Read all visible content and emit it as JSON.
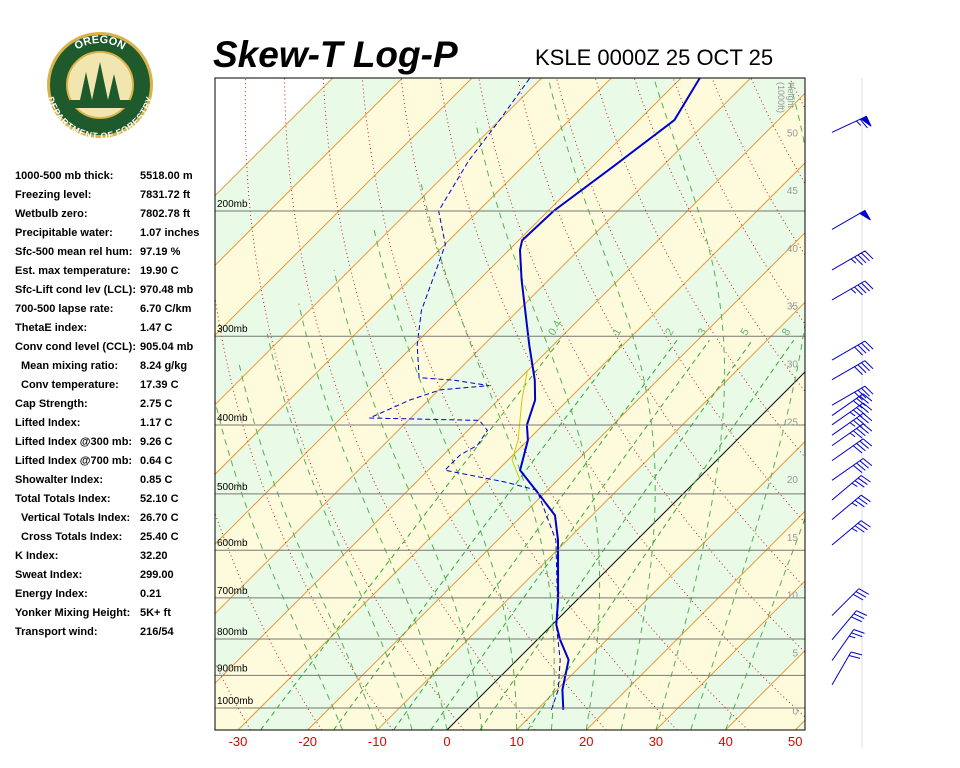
{
  "logo": {
    "top": "OREGON",
    "bottom": "DEPARTMENT OF FORESTRY"
  },
  "indices": [
    {
      "label": "1000-500 mb thick:",
      "value": "5518.00 m"
    },
    {
      "label": "Freezing level:",
      "value": "7831.72 ft"
    },
    {
      "label": "Wetbulb zero:",
      "value": "7802.78 ft"
    },
    {
      "label": "Precipitable water:",
      "value": "1.07 inches"
    },
    {
      "label": "Sfc-500 mean rel hum:",
      "value": "97.19 %"
    },
    {
      "label": "Est. max temperature:",
      "value": "19.90 C"
    },
    {
      "label": "Sfc-Lift cond lev (LCL):",
      "value": "970.48 mb"
    },
    {
      "label": "700-500 lapse rate:",
      "value": "6.70 C/km"
    },
    {
      "label": "ThetaE index:",
      "value": "1.47 C"
    },
    {
      "label": "Conv cond level (CCL):",
      "value": "905.04 mb"
    },
    {
      "label": "Mean mixing ratio:",
      "value": "8.24 g/kg",
      "indent": true
    },
    {
      "label": "Conv temperature:",
      "value": "17.39 C",
      "indent": true
    },
    {
      "label": "Cap Strength:",
      "value": "2.75 C"
    },
    {
      "label": "Lifted Index:",
      "value": "1.17 C"
    },
    {
      "label": "Lifted Index @300 mb:",
      "value": "9.26 C"
    },
    {
      "label": "Lifted Index @700 mb:",
      "value": "0.64 C"
    },
    {
      "label": "Showalter Index:",
      "value": "0.85 C"
    },
    {
      "label": "Total Totals Index:",
      "value": "52.10 C"
    },
    {
      "label": "Vertical Totals Index:",
      "value": "26.70 C",
      "indent": true
    },
    {
      "label": "Cross Totals Index:",
      "value": "25.40 C",
      "indent": true
    },
    {
      "label": "K Index:",
      "value": "32.20"
    },
    {
      "label": "Sweat Index:",
      "value": "299.00"
    },
    {
      "label": "Energy Index:",
      "value": "0.21"
    },
    {
      "label": "Yonker Mixing Height:",
      "value": "5K+ ft"
    },
    {
      "label": "Transport wind:",
      "value": "216/54"
    }
  ],
  "chart_data": {
    "type": "skewt",
    "title": "Skew-T Log-P",
    "subtitle": "KSLE 0000Z 25 OCT 25",
    "xlim": [
      -33.3,
      51.4
    ],
    "xticks": [
      -30,
      -20,
      -10,
      0,
      10,
      20,
      30,
      40,
      50
    ],
    "xtick_color": "#dd0000",
    "ylim": [
      1074,
      130
    ],
    "log_y": true,
    "yticks": [
      {
        "value": 1000,
        "label": "1000mb"
      },
      {
        "value": 900,
        "label": "900mb"
      },
      {
        "value": 800,
        "label": "800mb"
      },
      {
        "value": 700,
        "label": "700mb"
      },
      {
        "value": 600,
        "label": "600mb"
      },
      {
        "value": 500,
        "label": "500mb"
      },
      {
        "value": 400,
        "label": "400mb"
      },
      {
        "value": 300,
        "label": "300mb"
      },
      {
        "value": 200,
        "label": "200mb"
      }
    ],
    "height_label": [
      "Height",
      "(1000ft)"
    ],
    "hlim": [
      -1.7,
      54.7
    ],
    "hticks": [
      0,
      5,
      10,
      15,
      20,
      25,
      30,
      35,
      40,
      45,
      50
    ],
    "mixing_ratio_lines": [
      0.4,
      1,
      2,
      3,
      5,
      8
    ],
    "series": [
      {
        "color": "#0000cc",
        "dash": false,
        "width": 2,
        "pressure": [
          1006,
          943,
          856,
          802,
          764,
          705,
          581,
          536,
          502,
          463,
          420,
          400,
          369,
          346,
          309,
          250,
          227,
          220,
          200,
          173,
          149,
          130
        ],
        "values": [
          13.8,
          10.8,
          7.4,
          3.3,
          0.6,
          -2.7,
          -11.3,
          -15.3,
          -20.4,
          -26.8,
          -30,
          -32.3,
          -34.7,
          -37.6,
          -43.4,
          -53.9,
          -58.4,
          -59.5,
          -59.2,
          -57.0,
          -54.9,
          -57.3
        ]
      },
      {
        "color": "#0000cc",
        "dash": true,
        "width": 1,
        "pressure": [
          1006,
          943,
          856,
          764,
          705,
          581,
          494,
          481,
          463,
          441,
          427,
          407,
          394,
          391,
          369,
          357,
          352,
          346,
          343,
          309,
          276,
          223,
          200,
          170,
          149,
          130
        ],
        "values": [
          12.1,
          10.2,
          6.2,
          0.6,
          -2.8,
          -11.6,
          -21.5,
          -27.3,
          -37.6,
          -37.6,
          -36.5,
          -37.2,
          -39.8,
          -55.9,
          -52.7,
          -49.8,
          -43.4,
          -49.1,
          -54.6,
          -59.5,
          -63.9,
          -69.9,
          -75.7,
          -78.6,
          -80,
          -81.7
        ]
      },
      {
        "color": "#cccc00",
        "dash": false,
        "width": 1,
        "pressure": [
          478,
          448,
          420,
          369,
          335
        ],
        "values": [
          -25.4,
          -29.4,
          -31.4,
          -36.6,
          -40.1
        ]
      }
    ],
    "wind": {
      "color": "#0000cc",
      "height": [
        50,
        41.6,
        38.1,
        35.5,
        30.3,
        28.6,
        26.4,
        25.5,
        24.7,
        23.8,
        22.9,
        21.6,
        19.9,
        18.2,
        16.5,
        14.3,
        8.2,
        6.1,
        4.3,
        2.2
      ],
      "direction": [
        245,
        240,
        240,
        240,
        240,
        240,
        240,
        235,
        235,
        235,
        235,
        235,
        235,
        230,
        230,
        230,
        225,
        220,
        215,
        210
      ],
      "speed": [
        65,
        50,
        45,
        45,
        40,
        40,
        40,
        40,
        45,
        45,
        45,
        40,
        40,
        35,
        35,
        35,
        30,
        30,
        25,
        20
      ]
    }
  }
}
